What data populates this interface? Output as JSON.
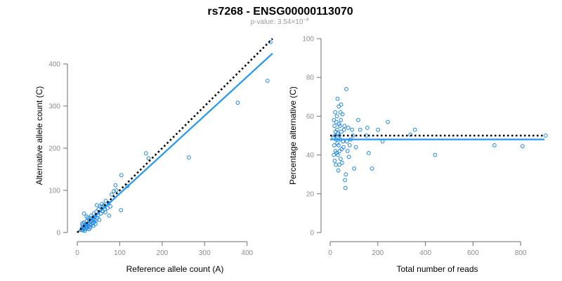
{
  "header": {
    "title": "rs7268 - ENSG00000113070",
    "pvalue_prefix": "p-value: 3.54×10",
    "pvalue_exponent": "−4"
  },
  "colors": {
    "points": "#1e88e5",
    "fit_line": "#2196f3",
    "reference_line": "#000000",
    "axis": "#6e6e6e",
    "tick_text": "#8c8c8c"
  },
  "chart_data": [
    {
      "type": "scatter",
      "xlabel": "Reference allele count (A)",
      "ylabel": "Alternative allele count (C)",
      "xlim": [
        0,
        460
      ],
      "ylim": [
        0,
        460
      ],
      "xticks": [
        0,
        100,
        200,
        300,
        400
      ],
      "yticks": [
        0,
        100,
        200,
        300,
        400
      ],
      "grid": false,
      "lines": [
        {
          "style": "solid",
          "color": "#2196f3",
          "x": [
            0,
            460
          ],
          "y": [
            0,
            425
          ]
        },
        {
          "style": "dotted",
          "color": "#000000",
          "x": [
            0,
            460
          ],
          "y": [
            0,
            460
          ]
        }
      ],
      "points": [
        [
          455,
          452
        ],
        [
          448,
          360
        ],
        [
          378,
          308
        ],
        [
          263,
          178
        ],
        [
          168,
          176
        ],
        [
          162,
          188
        ],
        [
          118,
          110
        ],
        [
          104,
          136
        ],
        [
          103,
          53
        ],
        [
          92,
          100
        ],
        [
          90,
          112
        ],
        [
          86,
          98
        ],
        [
          81,
          90
        ],
        [
          78,
          62
        ],
        [
          74,
          70
        ],
        [
          71,
          58
        ],
        [
          67,
          75
        ],
        [
          65,
          55
        ],
        [
          63,
          65
        ],
        [
          60,
          50
        ],
        [
          58,
          60
        ],
        [
          56,
          45
        ],
        [
          54,
          62
        ],
        [
          52,
          30
        ],
        [
          50,
          55
        ],
        [
          49,
          40
        ],
        [
          47,
          35
        ],
        [
          46,
          65
        ],
        [
          45,
          50
        ],
        [
          44,
          28
        ],
        [
          43,
          20
        ],
        [
          42,
          38
        ],
        [
          41,
          30
        ],
        [
          40,
          25
        ],
        [
          39,
          45
        ],
        [
          38,
          16
        ],
        [
          37,
          32
        ],
        [
          36,
          22
        ],
        [
          35,
          28
        ],
        [
          34,
          35
        ],
        [
          33,
          40
        ],
        [
          32,
          18
        ],
        [
          31,
          26
        ],
        [
          30,
          12
        ],
        [
          29,
          20
        ],
        [
          28,
          30
        ],
        [
          27,
          15
        ],
        [
          26,
          22
        ],
        [
          25,
          35
        ],
        [
          24,
          10
        ],
        [
          23,
          18
        ],
        [
          22,
          27
        ],
        [
          21,
          14
        ],
        [
          20,
          20
        ],
        [
          19,
          8
        ],
        [
          18,
          16
        ],
        [
          17,
          12
        ],
        [
          16,
          24
        ],
        [
          15,
          9
        ],
        [
          14,
          14
        ],
        [
          13,
          5
        ],
        [
          12,
          18
        ],
        [
          11,
          10
        ],
        [
          10,
          6
        ],
        [
          16,
          45
        ],
        [
          22,
          38
        ],
        [
          28,
          8
        ],
        [
          58,
          68
        ],
        [
          75,
          40
        ],
        [
          66,
          48
        ],
        [
          12,
          22
        ],
        [
          18,
          4
        ]
      ]
    },
    {
      "type": "scatter",
      "xlabel": "Total number of reads",
      "ylabel": "Percentage alternative (C)",
      "xlim": [
        0,
        900
      ],
      "ylim": [
        0,
        100
      ],
      "xticks": [
        0,
        200,
        400,
        600,
        800
      ],
      "yticks": [
        0,
        20,
        40,
        60,
        80,
        100
      ],
      "grid": false,
      "lines": [
        {
          "style": "solid",
          "color": "#2196f3",
          "x": [
            0,
            900
          ],
          "y": [
            48,
            48
          ]
        },
        {
          "style": "dotted",
          "color": "#000000",
          "x": [
            0,
            900
          ],
          "y": [
            50,
            50
          ]
        }
      ],
      "points": [
        [
          905,
          50
        ],
        [
          808,
          44.5
        ],
        [
          690,
          45
        ],
        [
          441,
          40
        ],
        [
          356,
          53
        ],
        [
          337,
          50.5
        ],
        [
          242,
          57
        ],
        [
          220,
          47
        ],
        [
          201,
          53
        ],
        [
          176,
          33
        ],
        [
          162,
          41
        ],
        [
          156,
          54
        ],
        [
          152,
          50
        ],
        [
          126,
          53
        ],
        [
          118,
          58
        ],
        [
          108,
          44
        ],
        [
          101,
          33
        ],
        [
          96,
          50
        ],
        [
          92,
          53
        ],
        [
          86,
          48
        ],
        [
          82,
          45
        ],
        [
          79,
          39
        ],
        [
          76,
          54
        ],
        [
          73,
          42
        ],
        [
          70,
          47
        ],
        [
          68,
          74
        ],
        [
          66,
          30
        ],
        [
          64,
          23
        ],
        [
          62,
          27
        ],
        [
          60,
          55
        ],
        [
          58,
          53
        ],
        [
          56,
          44
        ],
        [
          54,
          47
        ],
        [
          52,
          61
        ],
        [
          50,
          36
        ],
        [
          48,
          43
        ],
        [
          47,
          52
        ],
        [
          46,
          66
        ],
        [
          45,
          58
        ],
        [
          44,
          38
        ],
        [
          43,
          62
        ],
        [
          42,
          48
        ],
        [
          41,
          55
        ],
        [
          40,
          42
        ],
        [
          39,
          35
        ],
        [
          38,
          50
        ],
        [
          37,
          56
        ],
        [
          36,
          65
        ],
        [
          35,
          45
        ],
        [
          34,
          32
        ],
        [
          33,
          51
        ],
        [
          32,
          40
        ],
        [
          31,
          69
        ],
        [
          30,
          46
        ],
        [
          29,
          53
        ],
        [
          28,
          60
        ],
        [
          27,
          41
        ],
        [
          26,
          57
        ],
        [
          25,
          48
        ],
        [
          24,
          35
        ],
        [
          23,
          52
        ],
        [
          22,
          42
        ],
        [
          21,
          62
        ],
        [
          20,
          50
        ],
        [
          19,
          37
        ],
        [
          18,
          55
        ],
        [
          17,
          45
        ],
        [
          16,
          58
        ],
        [
          15,
          40
        ],
        [
          14,
          49
        ]
      ]
    }
  ]
}
